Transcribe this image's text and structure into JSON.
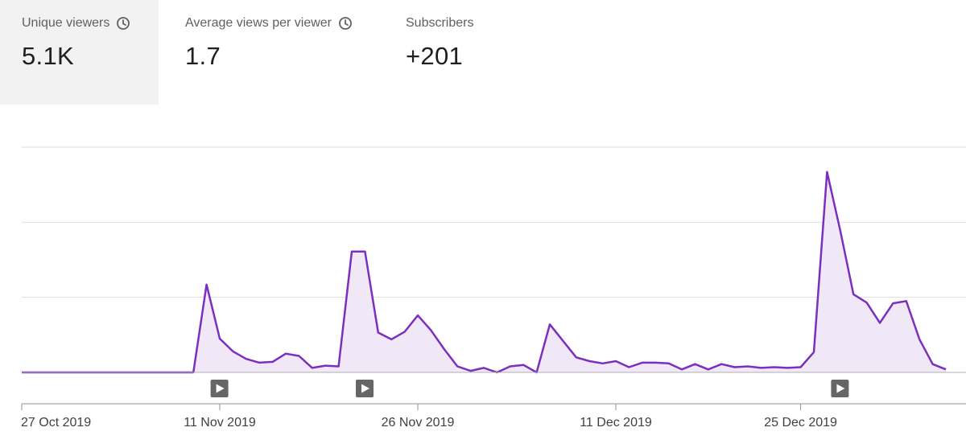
{
  "metrics": [
    {
      "label": "Unique viewers",
      "value": "5.1K",
      "icon": "clock-icon",
      "selected": true
    },
    {
      "label": "Average views per viewer",
      "value": "1.7",
      "icon": "clock-icon",
      "selected": false
    },
    {
      "label": "Subscribers",
      "value": "+201",
      "icon": null,
      "selected": false
    }
  ],
  "colors": {
    "line": "#7b2fbe",
    "fill": "#f1e8f7",
    "grid": "#dedede",
    "axis": "#909090",
    "marker_bg": "#666666"
  },
  "chart_data": {
    "type": "area",
    "title": "",
    "xlabel": "",
    "ylabel": "",
    "x_ticks": [
      "27 Oct 2019",
      "11 Nov 2019",
      "26 Nov 2019",
      "11 Dec 2019",
      "25 Dec 2019"
    ],
    "x_tick_days": [
      0,
      15,
      30,
      45,
      59
    ],
    "ylim": [
      0,
      300
    ],
    "grid": true,
    "series": [
      {
        "values": [
          0,
          0,
          0,
          0,
          0,
          0,
          0,
          0,
          0,
          0,
          0,
          0,
          0,
          0,
          117,
          45,
          28,
          18,
          13,
          14,
          25,
          22,
          6,
          9,
          8,
          161,
          161,
          53,
          44,
          54,
          76,
          56,
          31,
          8,
          2,
          6,
          0,
          8,
          10,
          0,
          64,
          42,
          20,
          15,
          12,
          15,
          7,
          13,
          13,
          12,
          4,
          11,
          4,
          11,
          7,
          8,
          6,
          7,
          6,
          7,
          27,
          267,
          189,
          104,
          93,
          66,
          92,
          95,
          44,
          11,
          4
        ]
      }
    ],
    "video_markers": [
      14,
      25,
      61
    ]
  }
}
